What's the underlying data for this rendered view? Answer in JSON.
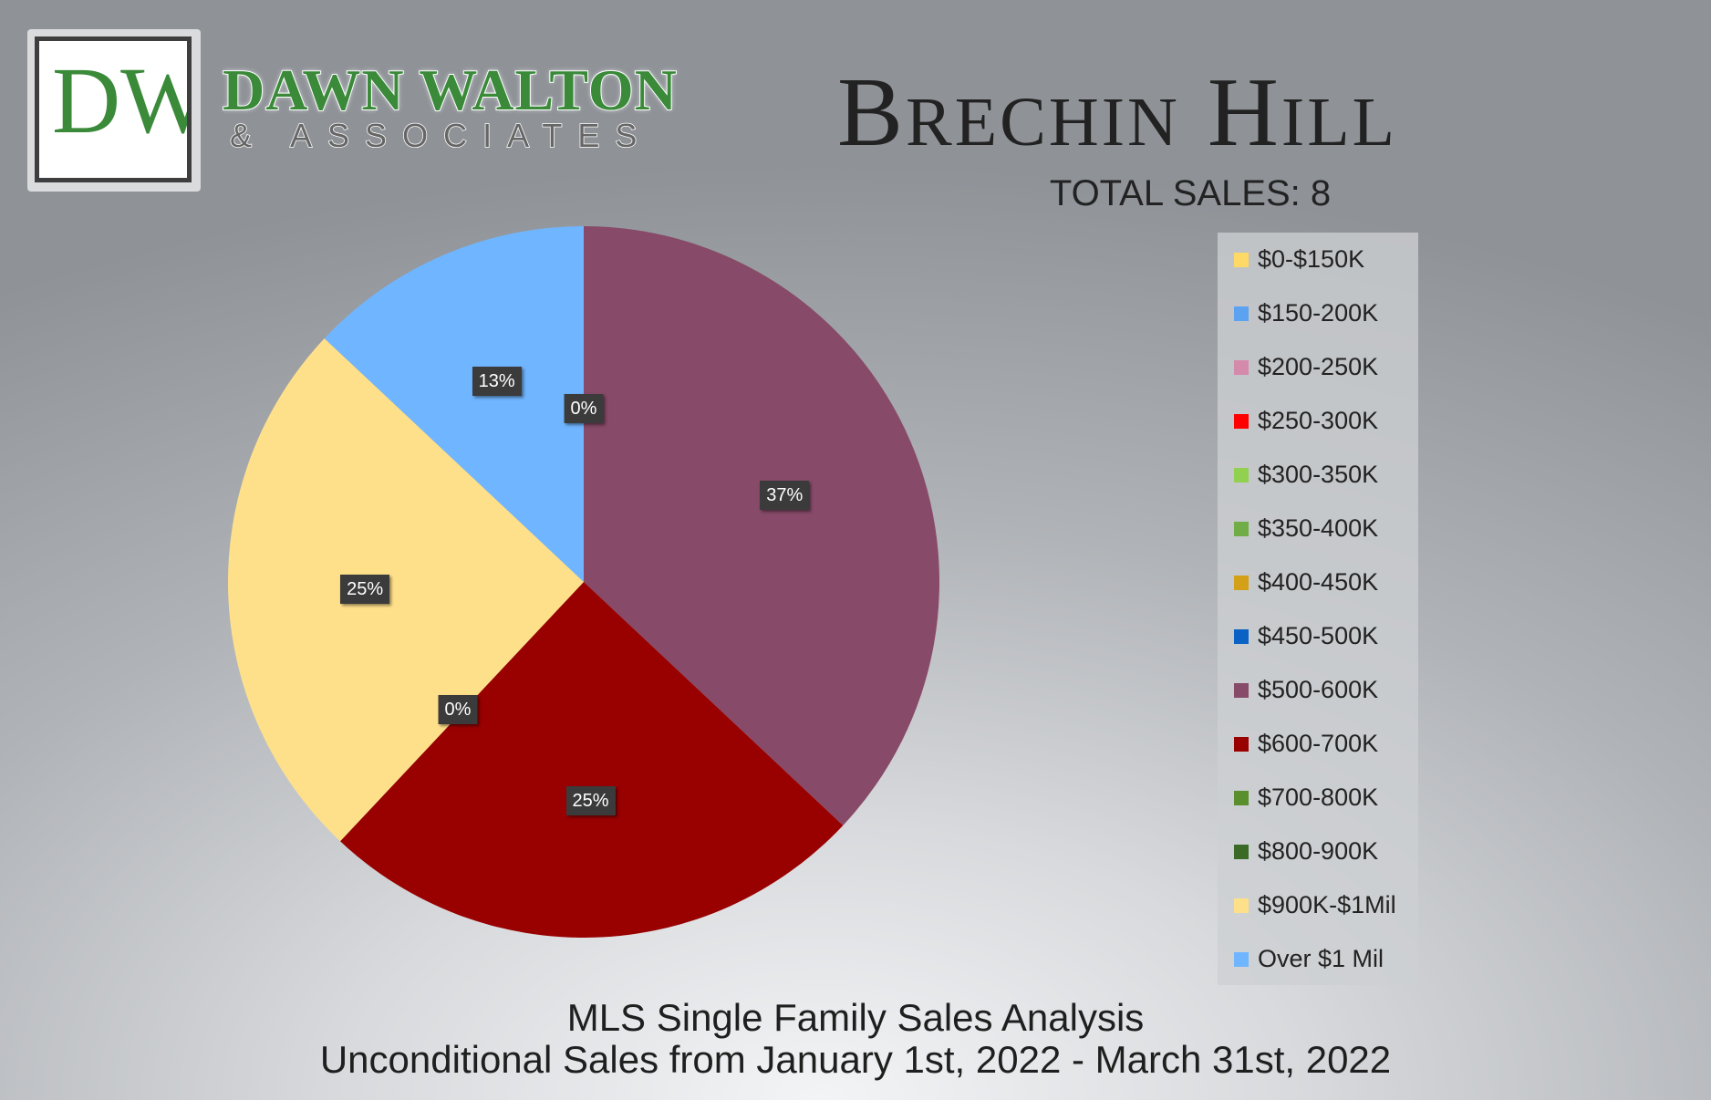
{
  "brand": {
    "logo_mark": "DW",
    "name_line1": "DAWN WALTON",
    "name_line2": "& ASSOCIATES"
  },
  "header": {
    "area_title": "Brechin Hill",
    "total_sales": "TOTAL SALES: 8"
  },
  "footer": {
    "line1": "MLS Single Family Sales Analysis",
    "line2": "Unconditional Sales from January 1st, 2022 - March 31st, 2022"
  },
  "chart_data": {
    "type": "pie",
    "legend_position": "right",
    "categories": [
      "$0-$150K",
      "$150-200K",
      "$200-250K",
      "$250-300K",
      "$300-350K",
      "$350-400K",
      "$400-450K",
      "$450-500K",
      "$500-600K",
      "$600-700K",
      "$700-800K",
      "$800-900K",
      "$900K-$1Mil",
      "Over $1 Mil"
    ],
    "colors": [
      "#ffd966",
      "#5ba3f0",
      "#d48aaa",
      "#ff0000",
      "#92d050",
      "#70ad47",
      "#d4a017",
      "#0a63c4",
      "#874a68",
      "#990000",
      "#5a8f2e",
      "#3b6a26",
      "#ffe08a",
      "#70b5ff"
    ],
    "values": [
      0,
      0,
      0,
      0,
      0,
      0,
      0,
      0,
      37,
      25,
      0,
      0,
      25,
      13
    ],
    "data_labels": [
      {
        "category": "$500-600K",
        "text": "37%"
      },
      {
        "category": "$600-700K",
        "text": "25%"
      },
      {
        "category": "$700-800K",
        "text": "0%"
      },
      {
        "category": "$900K-$1Mil",
        "text": "25%"
      },
      {
        "category": "Over $1 Mil",
        "text": "13%"
      },
      {
        "category": "$0-$150K",
        "text": "0%"
      }
    ]
  }
}
